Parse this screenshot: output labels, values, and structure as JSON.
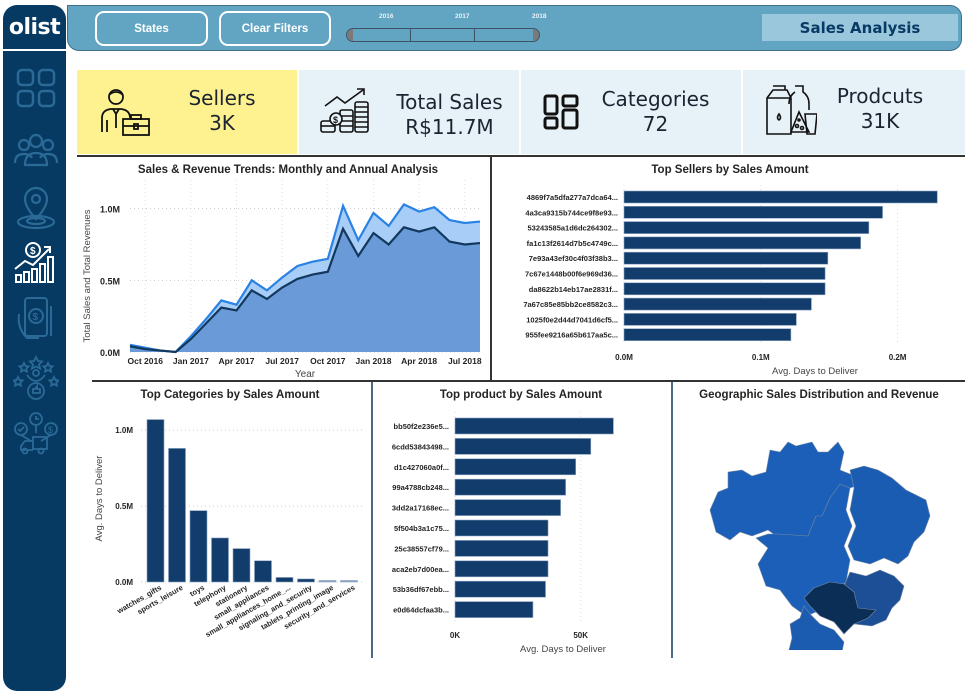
{
  "app": {
    "logo": "olist",
    "title": "Sales Analysis"
  },
  "header": {
    "buttons": [
      {
        "label": "States"
      },
      {
        "label": "Clear Filters"
      }
    ],
    "year_slicer": {
      "years": [
        "2016",
        "2017",
        "2018"
      ]
    }
  },
  "sidebar": {
    "items": [
      {
        "icon": "dashboard-grid-icon",
        "active": false
      },
      {
        "icon": "users-group-icon",
        "active": false
      },
      {
        "icon": "map-pin-icon",
        "active": false
      },
      {
        "icon": "sales-growth-chart-icon",
        "active": true
      },
      {
        "icon": "mobile-payment-icon",
        "active": false
      },
      {
        "icon": "rating-stars-icon",
        "active": false
      },
      {
        "icon": "delivery-truck-icon",
        "active": false
      }
    ]
  },
  "kpis": [
    {
      "label": "Sellers",
      "value": "3K",
      "icon": "seller-businessman-icon"
    },
    {
      "label": "Total Sales",
      "value": "R$11.7M",
      "icon": "coins-growth-icon"
    },
    {
      "label": "Categories",
      "value": "72",
      "icon": "categories-grid-icon"
    },
    {
      "label": "Prodcuts",
      "value": "31K",
      "icon": "products-groceries-icon"
    }
  ],
  "colors": {
    "sidebar": "#063a63",
    "header": "#62a5c3",
    "highlight_card": "#fdf28f",
    "card": "#e6f1f8",
    "bar": "#123c6c",
    "area_sales": "#a8cdf7",
    "area_revenue": "#6a9bd8",
    "line_sales": "#2a82e4",
    "line_revenue": "#12385e",
    "map_base": "#1b5fb8",
    "map_mid": "#1c4f96",
    "map_top": "#0b2e57"
  },
  "chart_data": [
    {
      "id": "trend",
      "type": "area",
      "title": "Sales & Revenue Trends: Monthly and Annual Analysis",
      "xlabel": "Year",
      "ylabel": "Total Sales and Total Revenues",
      "x": [
        "Sep 2016",
        "Oct 2016",
        "Nov 2016",
        "Dec 2016",
        "Jan 2017",
        "Feb 2017",
        "Mar 2017",
        "Apr 2017",
        "May 2017",
        "Jun 2017",
        "Jul 2017",
        "Aug 2017",
        "Sep 2017",
        "Oct 2017",
        "Nov 2017",
        "Dec 2017",
        "Jan 2018",
        "Feb 2018",
        "Mar 2018",
        "Apr 2018",
        "May 2018",
        "Jun 2018",
        "Jul 2018",
        "Aug 2018"
      ],
      "x_ticks": [
        "Oct 2016",
        "Jan 2017",
        "Apr 2017",
        "Jul 2017",
        "Oct 2017",
        "Jan 2018",
        "Apr 2018",
        "Jul 2018"
      ],
      "series": [
        {
          "name": "Total Sales",
          "values": [
            0.05,
            0.03,
            0.01,
            0.0,
            0.11,
            0.23,
            0.36,
            0.33,
            0.5,
            0.43,
            0.52,
            0.6,
            0.63,
            0.65,
            1.02,
            0.78,
            0.97,
            0.88,
            1.03,
            0.98,
            1.01,
            0.92,
            0.9,
            0.91
          ]
        },
        {
          "name": "Total Revenues",
          "values": [
            0.04,
            0.02,
            0.01,
            0.0,
            0.09,
            0.2,
            0.31,
            0.29,
            0.43,
            0.37,
            0.45,
            0.51,
            0.54,
            0.56,
            0.86,
            0.67,
            0.83,
            0.75,
            0.87,
            0.84,
            0.87,
            0.77,
            0.75,
            0.76
          ]
        }
      ],
      "y_unit": "M",
      "y_ticks": [
        "0.0M",
        "0.5M",
        "1.0M"
      ],
      "ylim": [
        0,
        1.2
      ],
      "grid": true
    },
    {
      "id": "sellers",
      "type": "bar",
      "orientation": "horizontal",
      "title": "Top Sellers by Sales Amount",
      "xlabel": "Avg. Days to Deliver",
      "categories": [
        "4869f7a5dfa277a7dca64...",
        "4a3ca9315b744ce9f8e93...",
        "53243585a1d6dc264302...",
        "fa1c13f2614d7b5c4749c...",
        "7e93a43ef30c4f03f38b3...",
        "7c67e1448b00f6e969d36...",
        "da8622b14eb17ae2831f...",
        "7a67c85e85bb2ce8582c3...",
        "1025f0e2d44d7041d6cf5...",
        "955fee9216a65b617aa5c..."
      ],
      "values": [
        0.229,
        0.189,
        0.179,
        0.173,
        0.149,
        0.147,
        0.147,
        0.137,
        0.126,
        0.122
      ],
      "x_ticks": [
        "0.0M",
        "0.1M",
        "0.2M"
      ],
      "xlim": [
        0,
        0.25
      ]
    },
    {
      "id": "categories",
      "type": "bar",
      "orientation": "vertical",
      "title": "Top Categories by Sales Amount",
      "ylabel": "Avg. Days to Deliver",
      "categories": [
        "watches_gifts",
        "sports_leisure",
        "toys",
        "telephony",
        "stationery",
        "small_appliances",
        "small_appliances_home_...",
        "signaling_and_security",
        "tablets_printing_image",
        "security_and_services"
      ],
      "values": [
        1.07,
        0.88,
        0.47,
        0.29,
        0.22,
        0.14,
        0.03,
        0.02,
        0.01,
        0.01
      ],
      "y_ticks": [
        "0.0M",
        "0.5M",
        "1.0M"
      ],
      "ylim": [
        0,
        1.1
      ]
    },
    {
      "id": "products",
      "type": "bar",
      "orientation": "horizontal",
      "title": "Top product by Sales Amount",
      "xlabel": "Avg. Days to Deliver",
      "categories": [
        "bb50f2e236e5...",
        "6cdd53843498...",
        "d1c427060a0f...",
        "99a4788cb248...",
        "3dd2a17168ec...",
        "5f504b3a1c75...",
        "25c38557cf79...",
        "aca2eb7d00ea...",
        "53b36df67ebb...",
        "e0d64dcfaa3b..."
      ],
      "values": [
        63,
        54,
        48,
        44,
        42,
        37,
        37,
        37,
        36,
        31
      ],
      "x_ticks": [
        "0K",
        "50K"
      ],
      "xlim": [
        0,
        70
      ]
    }
  ],
  "map": {
    "title": "Geographic Sales Distribution and Revenue",
    "highlighted_regions": [
      "SP",
      "MG"
    ]
  }
}
